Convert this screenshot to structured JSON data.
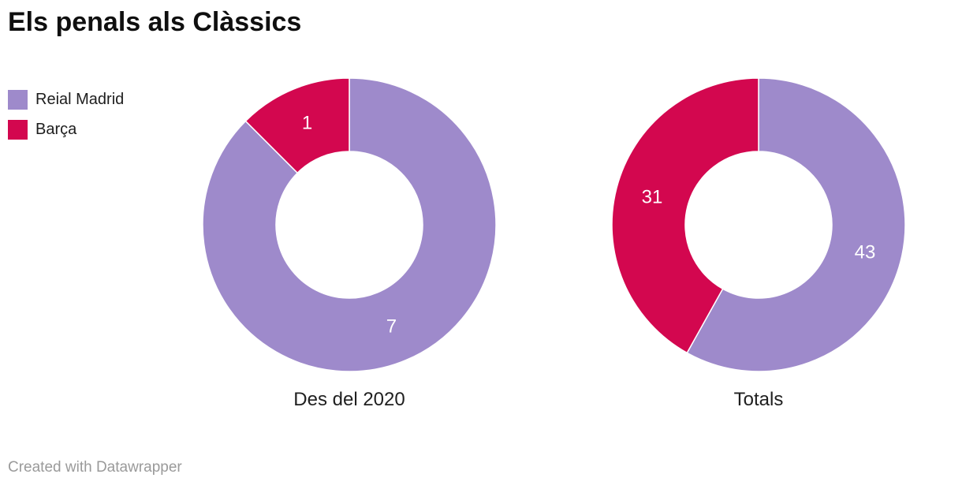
{
  "title": "Els penals als Clàssics",
  "legend": {
    "position": "top-left",
    "items": [
      {
        "label": "Reial Madrid",
        "color": "#9E8ACB"
      },
      {
        "label": "Barça",
        "color": "#D3074F"
      }
    ]
  },
  "chart_data": [
    {
      "type": "pie",
      "subtype": "donut",
      "title": "Des del 2020",
      "labels": [
        "Reial Madrid",
        "Barça"
      ],
      "values": [
        7,
        1
      ],
      "colors": [
        "#9E8ACB",
        "#D3074F"
      ],
      "start_angle_deg": 0,
      "direction": "clockwise",
      "inner_radius_ratio": 0.5,
      "value_label_color": "#FFFFFF",
      "slice_divider_color": "#FFFFFF"
    },
    {
      "type": "pie",
      "subtype": "donut",
      "title": "Totals",
      "labels": [
        "Reial Madrid",
        "Barça"
      ],
      "values": [
        43,
        31
      ],
      "colors": [
        "#9E8ACB",
        "#D3074F"
      ],
      "start_angle_deg": 0,
      "direction": "clockwise",
      "inner_radius_ratio": 0.5,
      "value_label_color": "#FFFFFF",
      "slice_divider_color": "#FFFFFF"
    }
  ],
  "footer": {
    "attribution": "Created with Datawrapper"
  },
  "colors": {
    "background": "#FFFFFF",
    "title_text": "#0F0F0F",
    "caption_text": "#202020",
    "legend_text": "#1D1D1D",
    "attribution_text": "#9A9A9A"
  }
}
